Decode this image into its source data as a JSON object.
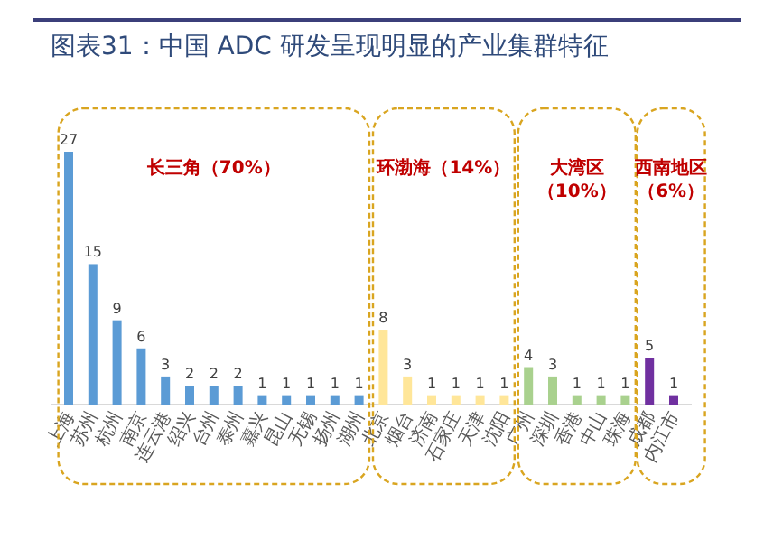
{
  "chart_data": {
    "type": "bar",
    "title": "图表31：中国 ADC 研发呈现明显的产业集群特征",
    "categories": [
      "上海",
      "苏州",
      "杭州",
      "南京",
      "连云港",
      "绍兴",
      "台州",
      "泰州",
      "嘉兴",
      "昆山",
      "无锡",
      "扬州",
      "湖州",
      "北京",
      "烟台",
      "济南",
      "石家庄",
      "天津",
      "沈阳",
      "广州",
      "深圳",
      "香港",
      "中山",
      "珠海",
      "成都",
      "内江市"
    ],
    "values": [
      27,
      15,
      9,
      6,
      3,
      2,
      2,
      2,
      1,
      1,
      1,
      1,
      1,
      8,
      3,
      1,
      1,
      1,
      1,
      4,
      3,
      1,
      1,
      1,
      5,
      1
    ],
    "colors": [
      "#5b9bd5",
      "#5b9bd5",
      "#5b9bd5",
      "#5b9bd5",
      "#5b9bd5",
      "#5b9bd5",
      "#5b9bd5",
      "#5b9bd5",
      "#5b9bd5",
      "#5b9bd5",
      "#5b9bd5",
      "#5b9bd5",
      "#5b9bd5",
      "#ffe699",
      "#ffe699",
      "#ffe699",
      "#ffe699",
      "#ffe699",
      "#ffe699",
      "#a9d18e",
      "#a9d18e",
      "#a9d18e",
      "#a9d18e",
      "#a9d18e",
      "#7030a0",
      "#7030a0"
    ],
    "data_labels": true,
    "annotations": [
      "长三角（70%）",
      "环渤海（14%）",
      "大湾区（10%）",
      "西南地区（6%）"
    ]
  }
}
